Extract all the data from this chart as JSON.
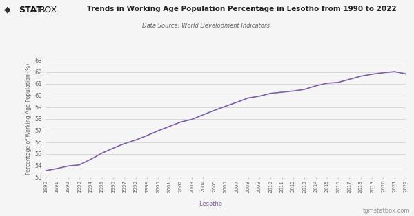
{
  "title": "Trends in Working Age Population Percentage in Lesotho from 1990 to 2022",
  "subtitle": "Data Source: World Development Indicators.",
  "ylabel": "Percentage of Working Age Population (%)",
  "footer_legend": "— Lesotho",
  "footer_right": "tgmstatbox.com",
  "logo_text_diamond": "◆",
  "logo_text_stat": "STAT",
  "logo_text_box": "BOX",
  "line_color": "#7b5ea7",
  "background_color": "#f5f5f5",
  "plot_bg_color": "#f5f5f5",
  "grid_color": "#cccccc",
  "title_color": "#222222",
  "subtitle_color": "#666666",
  "ylabel_color": "#666666",
  "tick_color": "#666666",
  "footer_color": "#666666",
  "website_color": "#999999",
  "ylim": [
    53,
    63
  ],
  "yticks": [
    53,
    54,
    55,
    56,
    57,
    58,
    59,
    60,
    61,
    62,
    63
  ],
  "years": [
    1990,
    1991,
    1992,
    1993,
    1994,
    1995,
    1996,
    1997,
    1998,
    1999,
    2000,
    2001,
    2002,
    2003,
    2004,
    2005,
    2006,
    2007,
    2008,
    2009,
    2010,
    2011,
    2012,
    2013,
    2014,
    2015,
    2016,
    2017,
    2018,
    2019,
    2020,
    2021,
    2022
  ],
  "values": [
    53.55,
    53.73,
    53.95,
    54.05,
    54.52,
    55.05,
    55.48,
    55.87,
    56.18,
    56.56,
    56.97,
    57.35,
    57.72,
    57.95,
    58.35,
    58.72,
    59.08,
    59.42,
    59.78,
    59.94,
    60.18,
    60.28,
    60.38,
    60.52,
    60.82,
    61.05,
    61.12,
    61.38,
    61.65,
    61.82,
    61.95,
    62.05,
    61.85
  ]
}
